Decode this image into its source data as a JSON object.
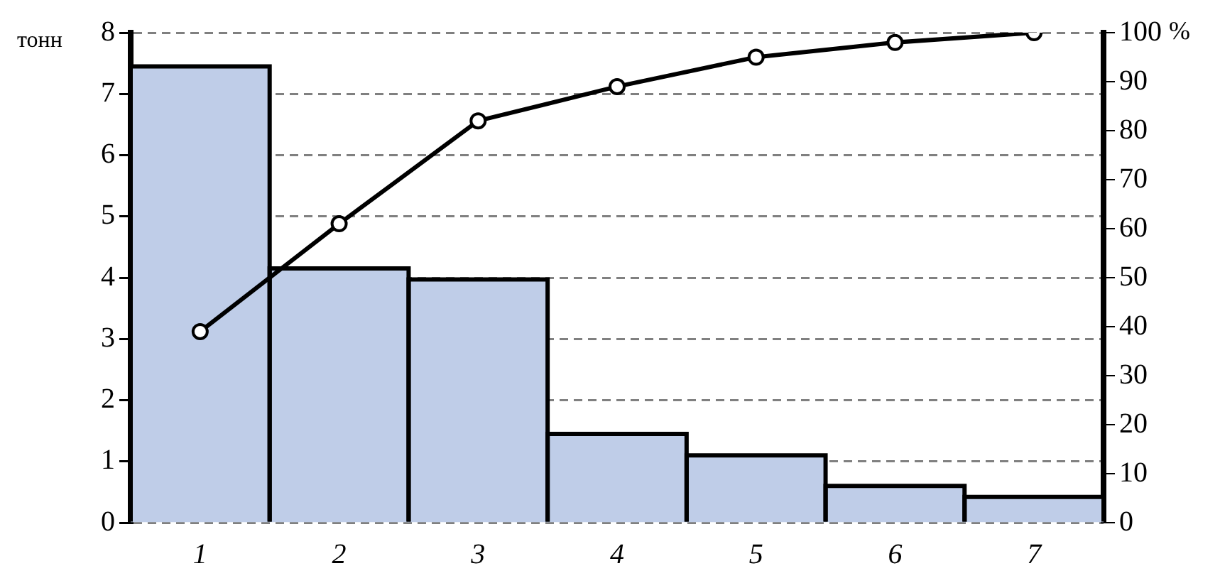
{
  "chart_data": {
    "type": "bar",
    "ylabel": "тонн",
    "y2label": "%",
    "categories": [
      "1",
      "2",
      "3",
      "4",
      "5",
      "6",
      "7"
    ],
    "series": [
      {
        "color": "#bfcde8",
        "values": [
          7.45,
          4.15,
          3.97,
          1.45,
          1.1,
          0.6,
          0.42
        ]
      },
      {
        "type": "line",
        "axis": "y2",
        "color": "#000000",
        "values": [
          39,
          61,
          82,
          89,
          95,
          98,
          100
        ]
      }
    ],
    "ylim": [
      0,
      8
    ],
    "yticks": [
      0,
      1,
      2,
      3,
      4,
      5,
      6,
      7,
      8
    ],
    "y2lim": [
      0,
      100
    ],
    "y2ticks": [
      0,
      10,
      20,
      30,
      40,
      50,
      60,
      70,
      80,
      90,
      100
    ],
    "grid": "y",
    "legend": false,
    "marker": "circle",
    "line_style": "solid"
  }
}
